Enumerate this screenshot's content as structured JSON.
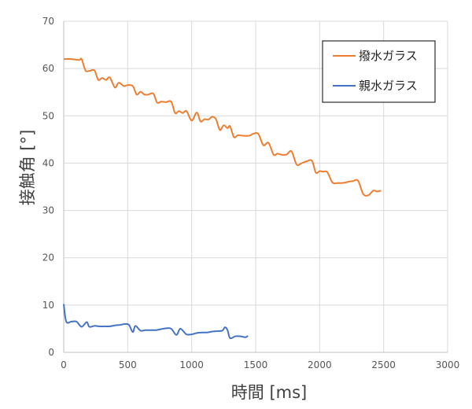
{
  "chart_data": {
    "type": "line",
    "xlabel": "時間 [ms]",
    "ylabel": "接触角 [°]",
    "xlim": [
      0,
      3000
    ],
    "ylim": [
      0,
      70
    ],
    "xticks": [
      0,
      500,
      1000,
      1500,
      2000,
      2500,
      3000
    ],
    "yticks": [
      0,
      10,
      20,
      30,
      40,
      50,
      60,
      70
    ],
    "grid": true,
    "legend_position": "top-right",
    "series": [
      {
        "name": "撥水ガラス",
        "color": "#ED7D31",
        "x": [
          0,
          60,
          120,
          140,
          170,
          200,
          240,
          270,
          300,
          330,
          360,
          400,
          430,
          470,
          500,
          540,
          570,
          600,
          630,
          660,
          700,
          730,
          760,
          800,
          840,
          870,
          900,
          930,
          960,
          1000,
          1040,
          1070,
          1100,
          1130,
          1160,
          1190,
          1220,
          1250,
          1280,
          1300,
          1330,
          1360,
          1400,
          1450,
          1480,
          1520,
          1560,
          1600,
          1640,
          1670,
          1700,
          1740,
          1780,
          1820,
          1860,
          1900,
          1940,
          1970,
          2000,
          2030,
          2060,
          2100,
          2140,
          2170,
          2200,
          2230,
          2260,
          2300,
          2340,
          2380,
          2420,
          2450,
          2480
        ],
        "y": [
          62,
          62,
          61.8,
          62,
          59.6,
          59.5,
          59.6,
          57.6,
          58,
          57.6,
          58.1,
          56,
          57,
          56.3,
          56.5,
          56.3,
          54.5,
          55.1,
          54.5,
          54.5,
          54.7,
          52.8,
          53,
          52.9,
          53,
          50.6,
          51,
          50.6,
          51,
          49,
          50.7,
          48.8,
          49.3,
          49.2,
          49.8,
          49.3,
          47,
          48,
          47.4,
          47.8,
          45.5,
          45.9,
          45.8,
          45.8,
          46.2,
          46.2,
          43.8,
          44.3,
          41.8,
          42,
          41.8,
          41.8,
          42.5,
          39.7,
          40,
          40.4,
          40.5,
          38,
          38.3,
          38.2,
          38.1,
          35.9,
          35.8,
          35.8,
          35.9,
          36.1,
          36.2,
          36.3,
          33.5,
          33.2,
          34.2,
          34.0,
          34.2
        ]
      },
      {
        "name": "親水ガラス",
        "color": "#4472C4",
        "x": [
          0,
          20,
          60,
          100,
          140,
          180,
          200,
          240,
          280,
          320,
          360,
          400,
          440,
          480,
          510,
          540,
          560,
          600,
          640,
          680,
          720,
          760,
          800,
          840,
          880,
          910,
          940,
          960,
          1000,
          1040,
          1080,
          1120,
          1160,
          1200,
          1240,
          1260,
          1280,
          1300,
          1340,
          1380,
          1420,
          1440
        ],
        "y": [
          10.2,
          6.5,
          6.5,
          6.5,
          5.4,
          6.4,
          5.4,
          5.6,
          5.5,
          5.5,
          5.5,
          5.7,
          5.8,
          6,
          5.8,
          4.3,
          5.6,
          4.6,
          4.7,
          4.7,
          4.7,
          4.9,
          5.1,
          5.0,
          3.7,
          5.0,
          4.3,
          3.8,
          3.8,
          4.1,
          4.2,
          4.2,
          4.4,
          4.5,
          4.6,
          5.3,
          4.7,
          3.0,
          3.4,
          3.4,
          3.2,
          3.5
        ]
      }
    ]
  }
}
